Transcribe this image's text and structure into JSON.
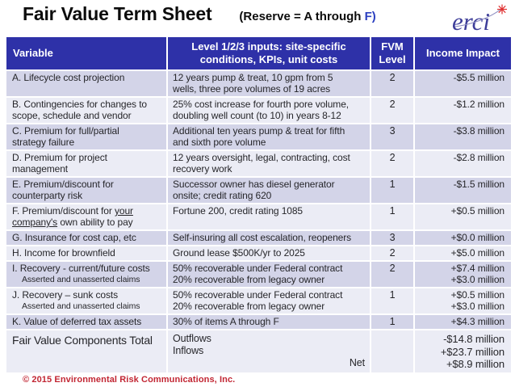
{
  "title": "Fair Value Term Sheet",
  "subtitle": {
    "prefix": "(Reserve = A through ",
    "highlight": "F)"
  },
  "logo": {
    "text": "erci",
    "spark_icon": "red-starburst"
  },
  "colors": {
    "header_bg": "#2e31a8",
    "band_dark": "#d3d4e8",
    "band_light": "#ebecf5",
    "subtitle_accent_blue": "#2b3fc0",
    "footer_red": "#c22633",
    "logo_navy": "#3d3d99",
    "spark_red": "#e03030"
  },
  "table": {
    "headers": {
      "variable": "Variable",
      "inputs_line1": "Level 1/2/3 inputs: site-specific",
      "inputs_line2": "conditions, KPIs, unit costs",
      "fvm_line1": "FVM",
      "fvm_line2": "Level",
      "impact": "Income Impact"
    },
    "rows": [
      {
        "shade": "dark",
        "variable_parts": [
          {
            "text": "A. Lifecycle cost projection"
          }
        ],
        "inputs": [
          "12 years pump & treat, 10 gpm from 5",
          "wells, three pore volumes of 19 acres"
        ],
        "fvm": "2",
        "impact": [
          "-$5.5 million"
        ]
      },
      {
        "shade": "light",
        "variable_parts": [
          {
            "text": "B. Contingencies for changes to"
          },
          {
            "br": true
          },
          {
            "text": "scope, schedule and vendor"
          }
        ],
        "inputs": [
          "25% cost increase for fourth pore volume,",
          "doubling well count (to 10) in years 8-12"
        ],
        "fvm": "2",
        "impact": [
          "-$1.2 million"
        ]
      },
      {
        "shade": "dark",
        "variable_parts": [
          {
            "text": "C. Premium for full/partial"
          },
          {
            "br": true
          },
          {
            "text": "strategy failure"
          }
        ],
        "inputs": [
          "Additional ten years pump & treat for fifth",
          "and sixth pore volume"
        ],
        "fvm": "3",
        "impact": [
          "-$3.8 million"
        ]
      },
      {
        "shade": "light",
        "variable_parts": [
          {
            "text": "D. Premium for project"
          },
          {
            "br": true
          },
          {
            "text": "management"
          }
        ],
        "inputs": [
          "12 years oversight, legal, contracting, cost",
          "recovery work"
        ],
        "fvm": "2",
        "impact": [
          "-$2.8 million"
        ]
      },
      {
        "shade": "dark",
        "variable_parts": [
          {
            "text": "E. Premium/discount for"
          },
          {
            "br": true
          },
          {
            "text": "counterparty risk"
          }
        ],
        "inputs": [
          "Successor owner has diesel generator",
          "onsite; credit rating 620"
        ],
        "fvm": "1",
        "impact": [
          "-$1.5 million"
        ]
      },
      {
        "shade": "light",
        "variable_parts": [
          {
            "text": "F. Premium/discount for "
          },
          {
            "text": "your",
            "underline": true
          },
          {
            "br": true
          },
          {
            "text": "company's",
            "underline": true
          },
          {
            "text": " own ability to pay"
          }
        ],
        "inputs": [
          "Fortune 200, credit rating 1085"
        ],
        "fvm": "1",
        "impact": [
          "+$0.5 million"
        ]
      },
      {
        "shade": "dark",
        "variable_parts": [
          {
            "text": "G. Insurance for cost cap, etc"
          }
        ],
        "inputs": [
          "Self-insuring all cost escalation, reopeners"
        ],
        "fvm": "3",
        "impact": [
          "+$0.0 million"
        ]
      },
      {
        "shade": "light",
        "variable_parts": [
          {
            "text": "H. Income for brownfield"
          }
        ],
        "inputs": [
          "Ground lease $500K/yr to 2025"
        ],
        "fvm": "2",
        "impact": [
          "+$5.0 million"
        ]
      },
      {
        "shade": "dark",
        "variable_parts": [
          {
            "text": "I. Recovery - current/future costs"
          }
        ],
        "subnote": "Asserted and unasserted claims",
        "inputs": [
          "50% recoverable under Federal contract",
          "20% recoverable from legacy owner"
        ],
        "fvm": "2",
        "impact": [
          "+$7.4 million",
          "+$3.0 million"
        ]
      },
      {
        "shade": "light",
        "variable_parts": [
          {
            "text": "J. Recovery – sunk costs"
          }
        ],
        "subnote": "Asserted and unasserted claims",
        "inputs": [
          "50% recoverable under Federal contract",
          "20% recoverable from legacy owner"
        ],
        "fvm": "1",
        "impact": [
          "+$0.5 million",
          "+$3.0 million"
        ]
      },
      {
        "shade": "dark",
        "variable_parts": [
          {
            "text": "K. Value of deferred tax assets"
          }
        ],
        "inputs": [
          "30% of items A through F"
        ],
        "fvm": "1",
        "impact": [
          "+$4.3 million"
        ]
      }
    ],
    "total": {
      "label": "Fair Value Components Total",
      "outflows_label": "Outflows",
      "inflows_label": "Inflows",
      "net_label": "Net",
      "outflows": "-$14.8 million",
      "inflows": "+$23.7 million",
      "net": "+$8.9 million"
    }
  },
  "footer": "© 2015 Environmental Risk Communications, Inc."
}
